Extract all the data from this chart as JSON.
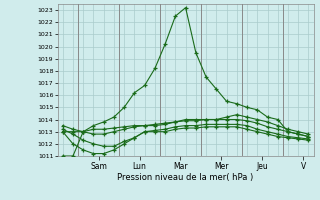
{
  "bg_color": "#d0ecec",
  "grid_color": "#aacccc",
  "line_color": "#1a6b1a",
  "marker_color": "#1a6b1a",
  "xlabel": "Pression niveau de la mer( hPa )",
  "ylim": [
    1011,
    1023.5
  ],
  "yticks": [
    1011,
    1012,
    1013,
    1014,
    1015,
    1016,
    1017,
    1018,
    1019,
    1020,
    1021,
    1022,
    1023
  ],
  "series": [
    [
      1011.0,
      1011.0,
      1013.0,
      1013.5,
      1013.8,
      1014.2,
      1015.0,
      1016.2,
      1016.8,
      1018.2,
      1020.2,
      1022.5,
      1023.2,
      1019.5,
      1017.5,
      1016.5,
      1015.5,
      1015.3,
      1015.0,
      1014.8,
      1014.2,
      1014.0,
      1013.0,
      1012.8,
      1012.6
    ],
    [
      1013.0,
      1013.0,
      1013.0,
      1013.2,
      1013.2,
      1013.3,
      1013.4,
      1013.5,
      1013.5,
      1013.5,
      1013.6,
      1013.8,
      1014.0,
      1014.0,
      1014.0,
      1014.0,
      1014.2,
      1014.4,
      1014.2,
      1014.0,
      1013.8,
      1013.5,
      1013.2,
      1013.0,
      1012.8
    ],
    [
      1013.5,
      1013.2,
      1013.0,
      1012.8,
      1012.8,
      1013.0,
      1013.2,
      1013.4,
      1013.5,
      1013.6,
      1013.7,
      1013.8,
      1013.9,
      1013.9,
      1014.0,
      1014.0,
      1014.0,
      1014.0,
      1013.9,
      1013.7,
      1013.4,
      1013.2,
      1013.0,
      1012.8,
      1012.6
    ],
    [
      1013.2,
      1012.8,
      1012.3,
      1012.0,
      1011.8,
      1011.8,
      1012.2,
      1012.5,
      1013.0,
      1013.1,
      1013.2,
      1013.4,
      1013.5,
      1013.5,
      1013.6,
      1013.6,
      1013.6,
      1013.6,
      1013.5,
      1013.2,
      1013.0,
      1012.8,
      1012.6,
      1012.5,
      1012.4
    ],
    [
      1013.0,
      1012.0,
      1011.5,
      1011.2,
      1011.2,
      1011.5,
      1012.0,
      1012.5,
      1013.0,
      1013.0,
      1013.0,
      1013.2,
      1013.3,
      1013.3,
      1013.4,
      1013.4,
      1013.4,
      1013.4,
      1013.2,
      1013.0,
      1012.8,
      1012.6,
      1012.5,
      1012.4,
      1012.3
    ]
  ],
  "x_positions": [
    0,
    1,
    2,
    3,
    4,
    5,
    6,
    7,
    8,
    9,
    10,
    11,
    12,
    13,
    14,
    15,
    16,
    17,
    18,
    19,
    20,
    21,
    22,
    23,
    24
  ],
  "xtick_positions": [
    3.5,
    7.5,
    11.5,
    15.5,
    19.5,
    23.5
  ],
  "xtick_display": [
    "Sam",
    "Lun",
    "Mar",
    "Mer",
    "Jeu",
    "V"
  ],
  "vline_positions": [
    1.5,
    5.5,
    9.5,
    13.5,
    17.5,
    21.5
  ],
  "figsize": [
    3.2,
    2.0
  ],
  "dpi": 100
}
